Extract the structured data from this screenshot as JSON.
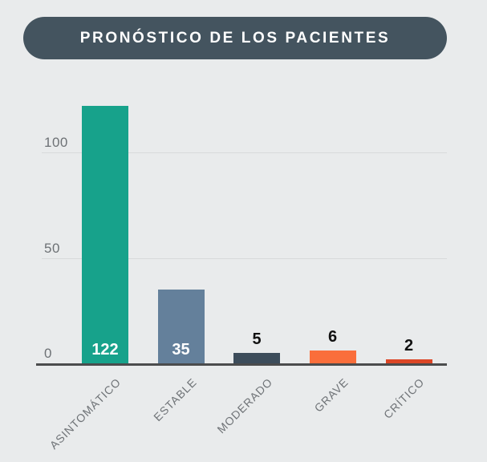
{
  "title": "PRONÓSTICO DE LOS PACIENTES",
  "chart_data": {
    "type": "bar",
    "title": "PRONÓSTICO DE LOS PACIENTES",
    "categories": [
      "ASINTOMÁTICO",
      "ESTABLE",
      "MODERADO",
      "GRAVE",
      "CRÍTICO"
    ],
    "values": [
      122,
      35,
      5,
      6,
      2
    ],
    "bar_colors": [
      "#17a28b",
      "#64809b",
      "#3d4d5b",
      "#fa6e3b",
      "#dc4626"
    ],
    "value_label_placement": [
      "inside",
      "inside",
      "above",
      "above",
      "above"
    ],
    "y_ticks": [
      0,
      50,
      100
    ],
    "ylim": [
      0,
      130
    ],
    "grid": true,
    "legend": "none",
    "xlabel": "",
    "ylabel": ""
  },
  "colors": {
    "background": "#e9ebec",
    "title_pill": "#44545f",
    "title_text": "#ffffff",
    "axis_line": "#4b4c4d",
    "gridline": "#d8dadb",
    "tick_text": "#6d7175",
    "category_text": "#6f7377",
    "value_inside_text": "#ffffff",
    "value_above_text": "#111111"
  }
}
